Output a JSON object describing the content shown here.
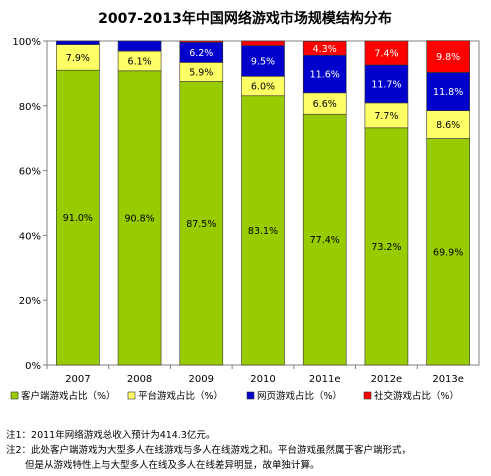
{
  "chart_data": {
    "type": "bar",
    "stacked": true,
    "title": "2007-2013年中国网络游戏市场规模结构分布",
    "categories": [
      "2007",
      "2008",
      "2009",
      "2010",
      "2011e",
      "2012e",
      "2013e"
    ],
    "ylim": [
      0,
      100
    ],
    "yticks": [
      "0%",
      "20%",
      "40%",
      "60%",
      "80%",
      "100%"
    ],
    "grid": false,
    "legend_position": "bottom",
    "series": [
      {
        "name": "客户端游戏占比（%）",
        "color": "#99CC00",
        "label_color": "#000000",
        "values": [
          91.0,
          90.8,
          87.5,
          83.1,
          77.4,
          73.2,
          69.9
        ],
        "labels": [
          "91.0%",
          "90.8%",
          "87.5%",
          "83.1%",
          "77.4%",
          "73.2%",
          "69.9%"
        ]
      },
      {
        "name": "平台游戏占比（%）",
        "color": "#FFFF66",
        "label_color": "#000000",
        "values": [
          7.9,
          6.1,
          5.9,
          6.0,
          6.6,
          7.7,
          8.6
        ],
        "labels": [
          "7.9%",
          "6.1%",
          "5.9%",
          "6.0%",
          "6.6%",
          "7.7%",
          "8.6%"
        ]
      },
      {
        "name": "网页游戏占比（%）",
        "color": "#0000CC",
        "label_color": "#ffffff",
        "values": [
          1.1,
          3.1,
          6.2,
          9.5,
          11.6,
          11.7,
          11.8
        ],
        "labels": [
          "",
          "",
          "6.2%",
          "9.5%",
          "11.6%",
          "11.7%",
          "11.8%"
        ]
      },
      {
        "name": "社交游戏占比（%）",
        "color": "#FF0000",
        "label_color": "#ffffff",
        "values": [
          0,
          0,
          0.4,
          1.4,
          4.3,
          7.4,
          9.8
        ],
        "labels": [
          "",
          "",
          "",
          "",
          "4.3%",
          "7.4%",
          "9.8%"
        ]
      }
    ]
  },
  "notes": [
    "注1：2011年网络游戏总收入预计为414.3亿元。",
    "注2：此处客户端游戏为大型多人在线游戏与多人在线游戏之和。平台游戏虽然属于客户端形式，",
    "　　但是从游戏特性上与大型多人在线及多人在线差异明显，故单独计算。"
  ]
}
